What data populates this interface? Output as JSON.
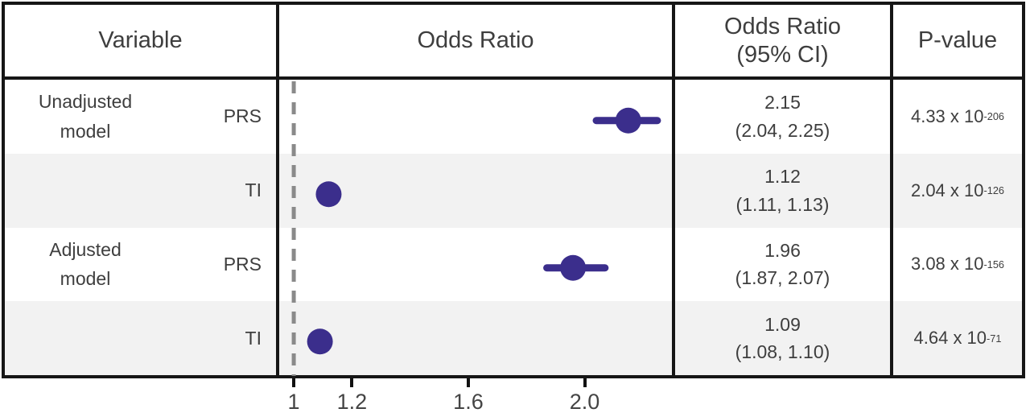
{
  "accent_color": "#3b2e8c",
  "reference_line_color": "#8a8a8a",
  "table": {
    "headers": [
      "Variable",
      "Odds Ratio",
      "Odds Ratio\n(95% CI)",
      "P-value"
    ]
  },
  "rows": [
    {
      "group": "Unadjusted\nmodel",
      "variable": "PRS",
      "or": "2.15",
      "ci": "(2.04, 2.25)",
      "p_base": "4.33 x 10",
      "p_exp": "-206"
    },
    {
      "group": "",
      "variable": "TI",
      "or": "1.12",
      "ci": "(1.11, 1.13)",
      "p_base": "2.04 x 10",
      "p_exp": "-126"
    },
    {
      "group": "Adjusted\nmodel",
      "variable": "PRS",
      "or": "1.96",
      "ci": "(1.87, 2.07)",
      "p_base": "3.08 x 10",
      "p_exp": "-156"
    },
    {
      "group": "",
      "variable": "TI",
      "or": "1.09",
      "ci": "(1.08, 1.10)",
      "p_base": "4.64 x 10",
      "p_exp": "-71"
    }
  ],
  "chart_data": {
    "type": "scatter",
    "subtype": "forest_plot",
    "title": "",
    "xlabel": "",
    "ylabel": "",
    "xlim": [
      0.95,
      2.3
    ],
    "reference_line_x": 1,
    "x_ticks": [
      1,
      1.2,
      1.6,
      2.0
    ],
    "x_tick_labels": [
      "1",
      "1.2",
      "1.6",
      "2.0"
    ],
    "grid": false,
    "legend": "none",
    "marker_color": "#3b2e8c",
    "series": [
      {
        "group": "Unadjusted model",
        "variable": "PRS",
        "or": 2.15,
        "ci_low": 2.04,
        "ci_high": 2.25,
        "p_value": "4.33 x 10^-206"
      },
      {
        "group": "Unadjusted model",
        "variable": "TI",
        "or": 1.12,
        "ci_low": 1.11,
        "ci_high": 1.13,
        "p_value": "2.04 x 10^-126"
      },
      {
        "group": "Adjusted model",
        "variable": "PRS",
        "or": 1.96,
        "ci_low": 1.87,
        "ci_high": 2.07,
        "p_value": "3.08 x 10^-156"
      },
      {
        "group": "Adjusted model",
        "variable": "TI",
        "or": 1.09,
        "ci_low": 1.08,
        "ci_high": 1.1,
        "p_value": "4.64 x 10^-71"
      }
    ]
  }
}
